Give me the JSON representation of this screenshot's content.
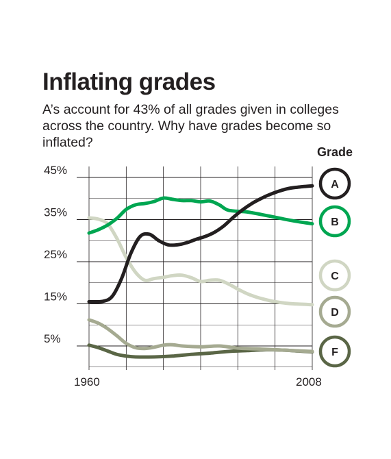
{
  "chart_data": {
    "type": "line",
    "title": "Inflating grades",
    "subtitle": "A’s account for 43% of all grades given in colleges across the country. Why have grades become so inflated?",
    "xlabel": "",
    "ylabel": "",
    "xlim": [
      1960,
      2008
    ],
    "ylim": [
      0,
      45
    ],
    "y_ticks": [
      "45%",
      "35%",
      "25%",
      "15%",
      "5%"
    ],
    "x_ticks": [
      "1960",
      "2008"
    ],
    "grid": true,
    "legend_title": "Grade",
    "legend_position": "right",
    "series": [
      {
        "name": "A",
        "color": "#231f20",
        "x": [
          1960,
          1963,
          1965,
          1967,
          1969,
          1971,
          1973,
          1975,
          1977,
          1979,
          1981,
          1983,
          1985,
          1987,
          1989,
          1991,
          1993,
          1995,
          1997,
          1999,
          2001,
          2003,
          2005,
          2008
        ],
        "y": [
          15.5,
          15.6,
          16.8,
          21.0,
          27.0,
          31.0,
          31.5,
          30.0,
          29.0,
          29.0,
          29.5,
          30.3,
          31.0,
          32.0,
          33.5,
          35.5,
          37.3,
          38.8,
          40.0,
          41.0,
          41.8,
          42.4,
          42.7,
          43.0
        ]
      },
      {
        "name": "B",
        "color": "#00a651",
        "x": [
          1960,
          1962,
          1964,
          1966,
          1968,
          1970,
          1972,
          1974,
          1976,
          1978,
          1980,
          1982,
          1984,
          1986,
          1988,
          1990,
          1994,
          1998,
          2002,
          2005,
          2008
        ],
        "y": [
          31.8,
          32.6,
          33.7,
          35.3,
          37.4,
          38.5,
          38.8,
          39.3,
          40.1,
          39.8,
          39.5,
          39.5,
          39.2,
          39.4,
          38.5,
          37.2,
          36.8,
          36.0,
          35.1,
          34.5,
          34.0
        ]
      },
      {
        "name": "C",
        "color": "#d0d6c3",
        "x": [
          1960,
          1962,
          1964,
          1966,
          1968,
          1970,
          1972,
          1974,
          1976,
          1978,
          1980,
          1982,
          1984,
          1986,
          1988,
          1990,
          1992,
          1994,
          1996,
          1998,
          2000,
          2002,
          2004,
          2008
        ],
        "y": [
          35.4,
          35.1,
          34.0,
          30.5,
          26.0,
          22.5,
          20.6,
          21.0,
          21.3,
          21.7,
          21.8,
          21.2,
          20.3,
          20.6,
          20.6,
          19.7,
          18.5,
          17.4,
          16.6,
          16.0,
          15.5,
          15.2,
          15.0,
          14.8
        ]
      },
      {
        "name": "D",
        "color": "#a5aa91",
        "x": [
          1960,
          1962,
          1964,
          1966,
          1968,
          1970,
          1972,
          1974,
          1976,
          1978,
          1980,
          1984,
          1988,
          1992,
          1996,
          2000,
          2004,
          2008
        ],
        "y": [
          11.2,
          10.4,
          9.1,
          7.4,
          5.6,
          4.6,
          4.4,
          4.7,
          5.2,
          5.3,
          5.0,
          4.8,
          5.0,
          4.5,
          4.3,
          4.1,
          3.9,
          3.7
        ]
      },
      {
        "name": "F",
        "color": "#5a6646",
        "x": [
          1960,
          1962,
          1964,
          1966,
          1968,
          1970,
          1974,
          1978,
          1982,
          1986,
          1990,
          1994,
          1998,
          2002,
          2005,
          2008
        ],
        "y": [
          5.2,
          4.6,
          3.8,
          3.0,
          2.6,
          2.4,
          2.4,
          2.6,
          3.0,
          3.3,
          3.7,
          3.9,
          4.1,
          4.0,
          3.8,
          3.6
        ]
      }
    ]
  }
}
